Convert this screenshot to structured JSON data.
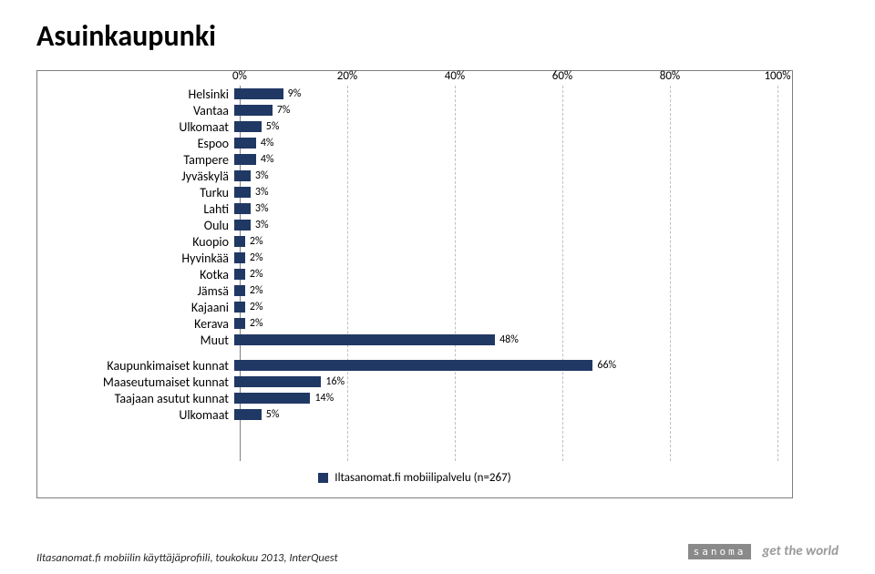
{
  "title": "Asuinkaupunki",
  "chart": {
    "type": "bar-horizontal",
    "x_axis": {
      "min": 0,
      "max": 100,
      "ticks": [
        0,
        20,
        40,
        60,
        80,
        100
      ],
      "labels": [
        "0%",
        "20%",
        "40%",
        "60%",
        "80%",
        "100%"
      ],
      "fontsize": 13
    },
    "bar_color": "#203864",
    "grid_color": "#bfbfbf",
    "axis_color": "#808080",
    "label_fontsize": 14,
    "value_fontsize": 12,
    "groups": [
      {
        "rows": [
          {
            "label": "Helsinki",
            "value": 9,
            "text": "9%"
          },
          {
            "label": "Vantaa",
            "value": 7,
            "text": "7%"
          },
          {
            "label": "Ulkomaat",
            "value": 5,
            "text": "5%"
          },
          {
            "label": "Espoo",
            "value": 4,
            "text": "4%"
          },
          {
            "label": "Tampere",
            "value": 4,
            "text": "4%"
          },
          {
            "label": "Jyväskylä",
            "value": 3,
            "text": "3%"
          },
          {
            "label": "Turku",
            "value": 3,
            "text": "3%"
          },
          {
            "label": "Lahti",
            "value": 3,
            "text": "3%"
          },
          {
            "label": "Oulu",
            "value": 3,
            "text": "3%"
          },
          {
            "label": "Kuopio",
            "value": 2,
            "text": "2%"
          },
          {
            "label": "Hyvinkää",
            "value": 2,
            "text": "2%"
          },
          {
            "label": "Kotka",
            "value": 2,
            "text": "2%"
          },
          {
            "label": "Jämsä",
            "value": 2,
            "text": "2%"
          },
          {
            "label": "Kajaani",
            "value": 2,
            "text": "2%"
          },
          {
            "label": "Kerava",
            "value": 2,
            "text": "2%"
          },
          {
            "label": "Muut",
            "value": 48,
            "text": "48%"
          }
        ]
      },
      {
        "rows": [
          {
            "label": "Kaupunkimaiset kunnat",
            "value": 66,
            "text": "66%"
          },
          {
            "label": "Maaseutumaiset kunnat",
            "value": 16,
            "text": "16%"
          },
          {
            "label": "Taajaan asutut kunnat",
            "value": 14,
            "text": "14%"
          },
          {
            "label": "Ulkomaat",
            "value": 5,
            "text": "5%"
          }
        ]
      }
    ],
    "legend": {
      "swatch_color": "#203864",
      "label": "Iltasanomat.fi mobiilipalvelu (n=267)"
    }
  },
  "footer_left": "Iltasanomat.fi mobiilin käyttäjäprofiili, toukokuu 2013, InterQuest",
  "footer_logo": "sanoma",
  "footer_tagline": "get the world"
}
